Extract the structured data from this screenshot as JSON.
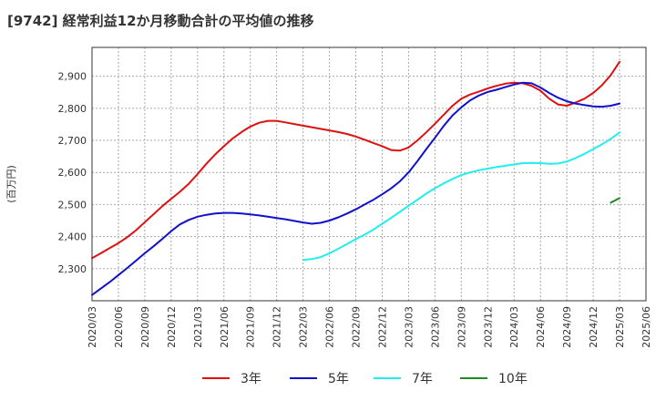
{
  "chart_data": {
    "type": "line",
    "title": "[9742]  経常利益12か月移動合計の平均値の推移",
    "ylabel": "(百万円)",
    "xlabel": "",
    "ylim": [
      2200,
      2990
    ],
    "yticks": [
      2300,
      2400,
      2500,
      2600,
      2700,
      2800,
      2900
    ],
    "ytick_labels": [
      "2,300",
      "2,400",
      "2,500",
      "2,600",
      "2,700",
      "2,800",
      "2,900"
    ],
    "xticks": [
      "2020/03",
      "2020/06",
      "2020/09",
      "2020/12",
      "2021/03",
      "2021/06",
      "2021/09",
      "2021/12",
      "2022/03",
      "2022/06",
      "2022/09",
      "2022/12",
      "2023/03",
      "2023/06",
      "2023/09",
      "2023/12",
      "2024/03",
      "2024/06",
      "2024/09",
      "2024/12",
      "2025/03",
      "2025/06"
    ],
    "grid": true,
    "legend_position": "bottom",
    "x": [
      "2020/03",
      "2020/04",
      "2020/05",
      "2020/06",
      "2020/07",
      "2020/08",
      "2020/09",
      "2020/10",
      "2020/11",
      "2020/12",
      "2021/01",
      "2021/02",
      "2021/03",
      "2021/04",
      "2021/05",
      "2021/06",
      "2021/07",
      "2021/08",
      "2021/09",
      "2021/10",
      "2021/11",
      "2021/12",
      "2022/01",
      "2022/02",
      "2022/03",
      "2022/04",
      "2022/05",
      "2022/06",
      "2022/07",
      "2022/08",
      "2022/09",
      "2022/10",
      "2022/11",
      "2022/12",
      "2023/01",
      "2023/02",
      "2023/03",
      "2023/04",
      "2023/05",
      "2023/06",
      "2023/07",
      "2023/08",
      "2023/09",
      "2023/10",
      "2023/11",
      "2023/12",
      "2024/01",
      "2024/02",
      "2024/03",
      "2024/04",
      "2024/05",
      "2024/06",
      "2024/07",
      "2024/08",
      "2024/09",
      "2024/10",
      "2024/11",
      "2024/12",
      "2025/01",
      "2025/02",
      "2025/03"
    ],
    "series": [
      {
        "name": "3年",
        "color": "#dd1111",
        "values": [
          2333,
          2348,
          2364,
          2380,
          2398,
          2420,
          2445,
          2470,
          2495,
          2518,
          2540,
          2565,
          2595,
          2627,
          2656,
          2682,
          2706,
          2726,
          2743,
          2755,
          2761,
          2761,
          2756,
          2751,
          2746,
          2741,
          2736,
          2731,
          2726,
          2720,
          2712,
          2702,
          2692,
          2682,
          2670,
          2668,
          2678,
          2700,
          2725,
          2752,
          2780,
          2808,
          2830,
          2843,
          2852,
          2862,
          2870,
          2877,
          2880,
          2878,
          2870,
          2855,
          2830,
          2812,
          2808,
          2818,
          2830,
          2848,
          2872,
          2904,
          2945
        ]
      },
      {
        "name": "5年",
        "color": "#1111cc",
        "values": [
          2218,
          2238,
          2258,
          2280,
          2302,
          2325,
          2348,
          2370,
          2393,
          2417,
          2438,
          2452,
          2462,
          2468,
          2472,
          2474,
          2474,
          2472,
          2469,
          2466,
          2462,
          2458,
          2454,
          2449,
          2444,
          2440,
          2443,
          2450,
          2460,
          2472,
          2485,
          2500,
          2515,
          2532,
          2550,
          2572,
          2600,
          2635,
          2672,
          2708,
          2745,
          2778,
          2803,
          2825,
          2840,
          2851,
          2858,
          2866,
          2874,
          2880,
          2878,
          2865,
          2848,
          2833,
          2822,
          2815,
          2810,
          2806,
          2805,
          2808,
          2815
        ]
      },
      {
        "name": "7年",
        "color": "#22eeee",
        "values": [
          null,
          null,
          null,
          null,
          null,
          null,
          null,
          null,
          null,
          null,
          null,
          null,
          null,
          null,
          null,
          null,
          null,
          null,
          null,
          null,
          null,
          null,
          null,
          null,
          2327,
          2330,
          2336,
          2348,
          2362,
          2377,
          2392,
          2406,
          2422,
          2440,
          2458,
          2477,
          2496,
          2515,
          2534,
          2551,
          2566,
          2580,
          2592,
          2600,
          2607,
          2612,
          2617,
          2621,
          2625,
          2629,
          2630,
          2629,
          2627,
          2628,
          2634,
          2645,
          2658,
          2673,
          2688,
          2705,
          2725
        ]
      },
      {
        "name": "10年",
        "color": "#228822",
        "values": [
          null,
          null,
          null,
          null,
          null,
          null,
          null,
          null,
          null,
          null,
          null,
          null,
          null,
          null,
          null,
          null,
          null,
          null,
          null,
          null,
          null,
          null,
          null,
          null,
          null,
          null,
          null,
          null,
          null,
          null,
          null,
          null,
          null,
          null,
          null,
          null,
          null,
          null,
          null,
          null,
          null,
          null,
          null,
          null,
          null,
          null,
          null,
          null,
          null,
          null,
          null,
          null,
          null,
          null,
          null,
          null,
          null,
          null,
          null,
          2506,
          2520
        ]
      }
    ]
  }
}
